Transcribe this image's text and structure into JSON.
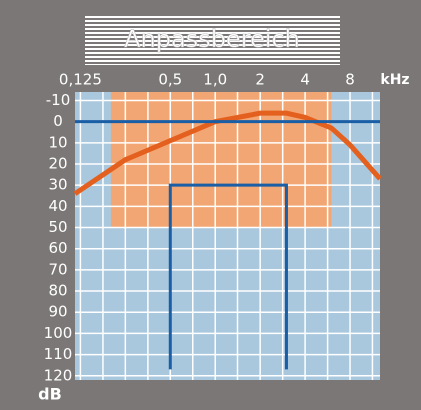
{
  "chart_data": {
    "type": "line",
    "title": "Anpassbereich",
    "xlabel": "kHz",
    "ylabel": "dB",
    "xscale": "log",
    "yinverted": true,
    "xlim": [
      0.115,
      12.7
    ],
    "ylim": [
      -14,
      122
    ],
    "xticks": [
      {
        "value": 0.125,
        "label": "0,125"
      },
      {
        "value": 0.5,
        "label": "0,5"
      },
      {
        "value": 1,
        "label": "1,0"
      },
      2,
      4,
      8
    ],
    "xgrid": [
      0.125,
      0.177,
      0.25,
      0.354,
      0.5,
      0.707,
      1,
      1.41,
      2,
      2.83,
      4,
      5.66,
      8,
      11.3
    ],
    "yticks": [
      -10,
      0,
      10,
      20,
      30,
      40,
      50,
      60,
      70,
      80,
      90,
      100,
      110,
      120
    ],
    "grid": true,
    "region": {
      "color": "#f2a673",
      "x": [
        0.2,
        6
      ],
      "y": [
        -14,
        50
      ]
    },
    "series": [
      {
        "color": "#e4601e",
        "x": [
          0.115,
          0.25,
          0.5,
          1,
          2,
          3,
          4,
          6,
          8,
          12.7
        ],
        "values": [
          34,
          18,
          9,
          0,
          -4,
          -4,
          -2,
          3,
          11,
          27
        ]
      },
      {
        "color": "#1a5ea6",
        "x": [
          0.115,
          12.7
        ],
        "values": [
          0,
          0
        ]
      },
      {
        "color": "#1a5ea6",
        "x": [
          0.5,
          0.5,
          3,
          3
        ],
        "values": [
          117,
          30,
          30,
          117
        ]
      }
    ]
  }
}
